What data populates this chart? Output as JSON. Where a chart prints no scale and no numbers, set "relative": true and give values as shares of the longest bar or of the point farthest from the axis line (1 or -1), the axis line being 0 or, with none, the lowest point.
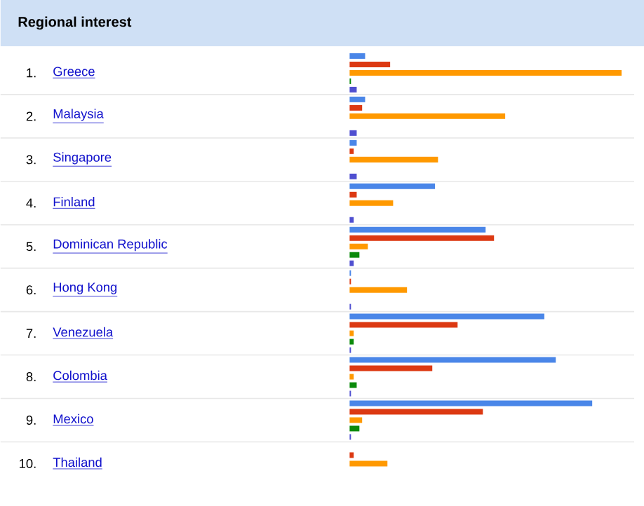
{
  "chart_data": {
    "type": "bar",
    "orientation": "horizontal",
    "relative": true,
    "title": "Regional interest",
    "categories": [
      "Greece",
      "Malaysia",
      "Singapore",
      "Finland",
      "Dominican Republic",
      "Hong Kong",
      "Venezuela",
      "Colombia",
      "Mexico",
      "Thailand"
    ],
    "annotations": [
      "1.",
      "2.",
      "3.",
      "4.",
      "5.",
      "6.",
      "7.",
      "8.",
      "9.",
      "10."
    ],
    "series": [
      {
        "color": "#4a86e8",
        "values": [
          0.057,
          0.057,
          0.026,
          0.314,
          0.5,
          0.005,
          0.716,
          0.758,
          0.892,
          0
        ]
      },
      {
        "color": "#dc3912",
        "values": [
          0.149,
          0.046,
          0.015,
          0.026,
          0.531,
          0.005,
          0.397,
          0.304,
          0.49,
          0.015
        ]
      },
      {
        "color": "#ff9900",
        "values": [
          1.0,
          0.572,
          0.325,
          0.16,
          0.067,
          0.211,
          0.015,
          0.015,
          0.046,
          0.139
        ]
      },
      {
        "color": "#0b8a0b",
        "values": [
          0.005,
          0,
          0,
          0,
          0.036,
          0,
          0.015,
          0.026,
          0.036,
          0
        ]
      },
      {
        "color": "#4f4fd0",
        "values": [
          0.026,
          0.026,
          0.026,
          0.015,
          0.015,
          0.005,
          0.005,
          0.005,
          0.005,
          0
        ]
      }
    ]
  }
}
